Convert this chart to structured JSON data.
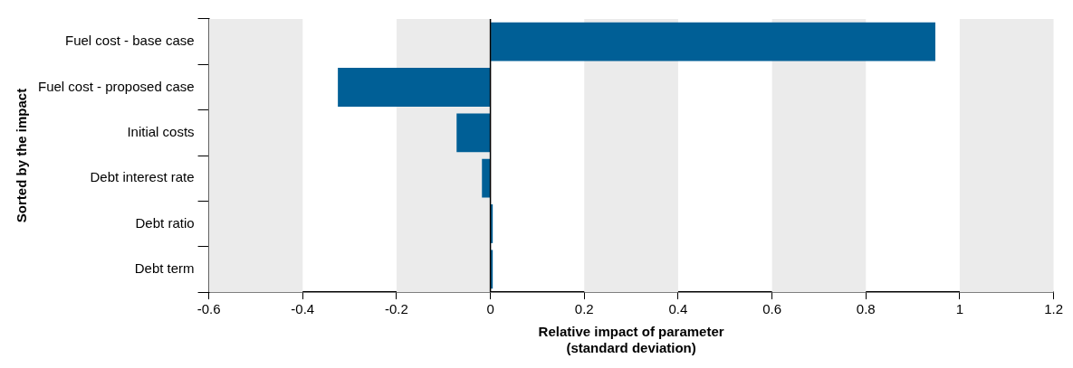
{
  "chart_data": {
    "type": "bar",
    "orientation": "horizontal",
    "xlabel": "Relative impact of parameter\n(standard deviation)",
    "ylabel": "Sorted by the impact",
    "categories": [
      "Fuel cost - base case",
      "Fuel cost - proposed case",
      "Initial costs",
      "Debt interest rate",
      "Debt ratio",
      "Debt term"
    ],
    "values": [
      0.948,
      -0.325,
      -0.072,
      -0.018,
      0.005,
      0.005
    ],
    "color": "#005f96",
    "xlim": [
      -0.6,
      1.2
    ],
    "xticks": [
      -0.6,
      -0.4,
      -0.2,
      0,
      0.2,
      0.4,
      0.6,
      0.8,
      1,
      1.2
    ],
    "grid": false,
    "bands": [
      {
        "axis": "x",
        "from": -0.6,
        "to": -0.4,
        "color": "#ebebeb"
      },
      {
        "axis": "x",
        "from": -0.2,
        "to": 0,
        "color": "#ebebeb"
      },
      {
        "axis": "x",
        "from": 0.2,
        "to": 0.4,
        "color": "#ebebeb"
      },
      {
        "axis": "x",
        "from": 0.6,
        "to": 0.8,
        "color": "#ebebeb"
      },
      {
        "axis": "x",
        "from": 1,
        "to": 1.2,
        "color": "#ebebeb"
      }
    ],
    "ref_lines": [
      {
        "axis": "x",
        "value": 0,
        "color": "#000000"
      }
    ]
  }
}
